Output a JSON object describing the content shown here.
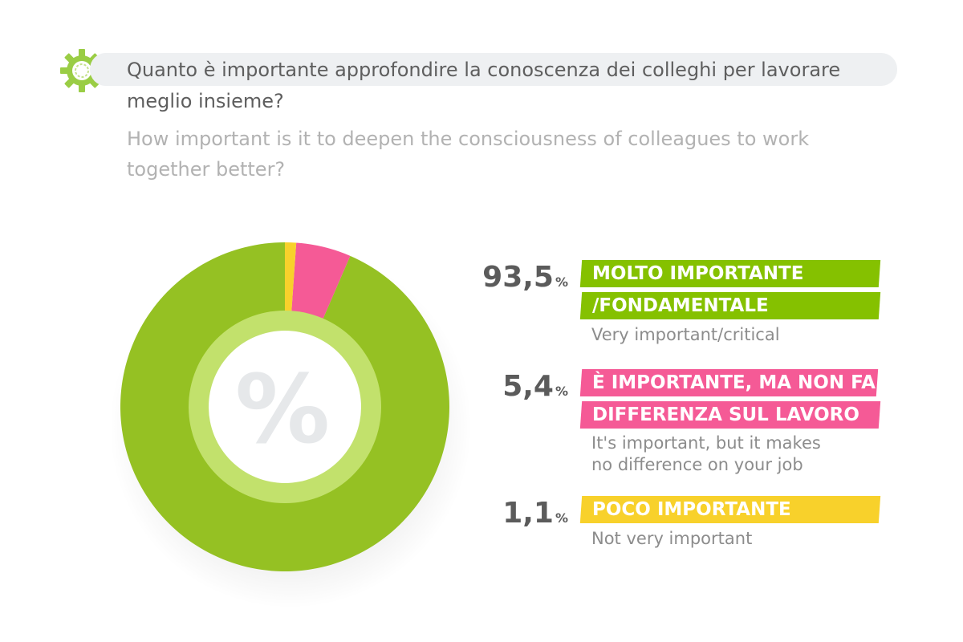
{
  "header": {
    "question_it": "Quanto è importante approfondire la conoscenza dei colleghi per lavorare meglio insieme?",
    "question_en": "How important is it to deepen the consciousness of colleagues to work together better?"
  },
  "center_symbol": "%",
  "percent_symbol": "%",
  "colors": {
    "green": "#95c123",
    "pink": "#f55a96",
    "yellow": "#f8d12b",
    "label_green": "#85c100"
  },
  "chart_data": {
    "type": "pie",
    "variant": "donut",
    "title": "",
    "categories": [
      "MOLTO IMPORTANTE /FONDAMENTALE",
      "È IMPORTANTE, MA NON FA DIFFERENZA SUL LAVORO",
      "POCO IMPORTANTE"
    ],
    "values": [
      93.5,
      5.4,
      1.1
    ],
    "value_labels": [
      "93,5",
      "5,4",
      "1,1"
    ],
    "colors": [
      "#95c123",
      "#f55a96",
      "#f8d12b"
    ],
    "direction": "counterclockwise from 12 o'clock",
    "legend": [
      {
        "label_lines": [
          "MOLTO IMPORTANTE",
          "/FONDAMENTALE"
        ],
        "sublabel_lines": [
          "Very important/critical"
        ]
      },
      {
        "label_lines": [
          "È IMPORTANTE, MA NON FA",
          "DIFFERENZA SUL LAVORO"
        ],
        "sublabel_lines": [
          "It's important, but it makes",
          "no difference on your job"
        ]
      },
      {
        "label_lines": [
          "POCO IMPORTANTE"
        ],
        "sublabel_lines": [
          "Not very important"
        ]
      }
    ],
    "legend_position": "right"
  }
}
